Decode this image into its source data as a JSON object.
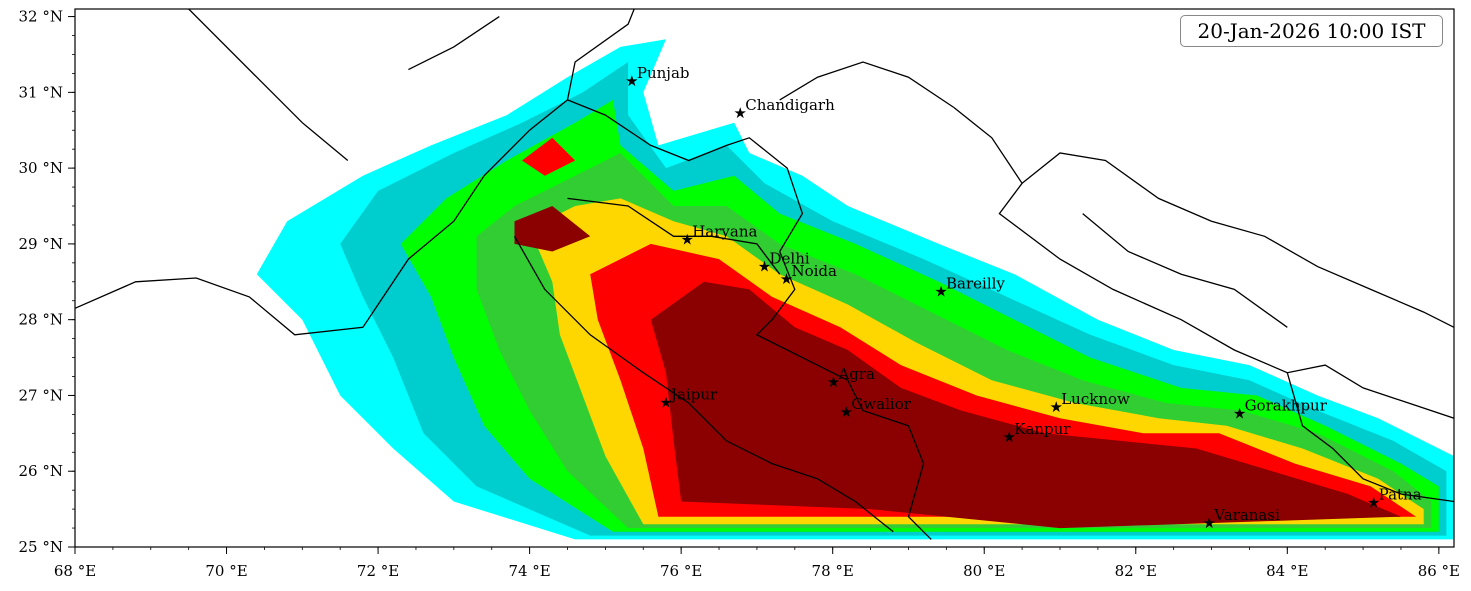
{
  "map": {
    "timestamp": "20-Jan-2026 10:00 IST",
    "colors": {
      "level1": "#00ffff",
      "level2": "#00cdcd",
      "level3": "#00ff00",
      "level4": "#32cd32",
      "level5": "#ffd700",
      "level6": "#ff0000",
      "level7": "#8b0000",
      "boundary": "#000000"
    },
    "lon_range": [
      68,
      86.2
    ],
    "lat_range": [
      25,
      32.1
    ],
    "x_ticks": [
      {
        "value": 68,
        "label": "68 °E"
      },
      {
        "value": 70,
        "label": "70 °E"
      },
      {
        "value": 72,
        "label": "72 °E"
      },
      {
        "value": 74,
        "label": "74 °E"
      },
      {
        "value": 76,
        "label": "76 °E"
      },
      {
        "value": 78,
        "label": "78 °E"
      },
      {
        "value": 80,
        "label": "80 °E"
      },
      {
        "value": 82,
        "label": "82 °E"
      },
      {
        "value": 84,
        "label": "84 °E"
      },
      {
        "value": 86,
        "label": "86 °E"
      }
    ],
    "y_ticks": [
      {
        "value": 25,
        "label": "25 °N"
      },
      {
        "value": 26,
        "label": "26 °N"
      },
      {
        "value": 27,
        "label": "27 °N"
      },
      {
        "value": 28,
        "label": "28 °N"
      },
      {
        "value": 29,
        "label": "29 °N"
      },
      {
        "value": 30,
        "label": "30 °N"
      },
      {
        "value": 31,
        "label": "31 °N"
      },
      {
        "value": 32,
        "label": "32 °N"
      }
    ],
    "cities": [
      {
        "name": "Punjab",
        "lon": 75.35,
        "lat": 31.15
      },
      {
        "name": "Chandigarh",
        "lon": 76.78,
        "lat": 30.73
      },
      {
        "name": "Haryana",
        "lon": 76.08,
        "lat": 29.06
      },
      {
        "name": "Delhi",
        "lon": 77.1,
        "lat": 28.7
      },
      {
        "name": "Noida",
        "lon": 77.39,
        "lat": 28.54
      },
      {
        "name": "Bareilly",
        "lon": 79.43,
        "lat": 28.37
      },
      {
        "name": "Jaipur",
        "lon": 75.8,
        "lat": 26.91
      },
      {
        "name": "Agra",
        "lon": 78.01,
        "lat": 27.18
      },
      {
        "name": "Gwalior",
        "lon": 78.18,
        "lat": 26.78
      },
      {
        "name": "Lucknow",
        "lon": 80.95,
        "lat": 26.85
      },
      {
        "name": "Kanpur",
        "lon": 80.33,
        "lat": 26.45
      },
      {
        "name": "Gorakhpur",
        "lon": 83.37,
        "lat": 26.76
      },
      {
        "name": "Varanasi",
        "lon": 82.97,
        "lat": 25.32
      },
      {
        "name": "Patna",
        "lon": 85.14,
        "lat": 25.59
      }
    ],
    "fog_layers": [
      {
        "level": "level1",
        "poly": [
          [
            74.6,
            25.1
          ],
          [
            73.0,
            25.6
          ],
          [
            72.2,
            26.3
          ],
          [
            71.5,
            27.0
          ],
          [
            71.0,
            28.0
          ],
          [
            70.4,
            28.6
          ],
          [
            70.8,
            29.3
          ],
          [
            71.8,
            29.9
          ],
          [
            72.7,
            30.3
          ],
          [
            73.7,
            30.7
          ],
          [
            74.5,
            31.2
          ],
          [
            75.2,
            31.6
          ],
          [
            75.8,
            31.7
          ],
          [
            75.5,
            31.0
          ],
          [
            75.7,
            30.3
          ],
          [
            76.7,
            30.6
          ],
          [
            76.9,
            30.2
          ],
          [
            77.6,
            29.9
          ],
          [
            78.2,
            29.5
          ],
          [
            79.4,
            29.0
          ],
          [
            80.4,
            28.6
          ],
          [
            81.5,
            28.0
          ],
          [
            82.5,
            27.6
          ],
          [
            83.5,
            27.4
          ],
          [
            84.4,
            27.0
          ],
          [
            85.2,
            26.7
          ],
          [
            86.2,
            26.2
          ],
          [
            86.2,
            25.1
          ]
        ]
      },
      {
        "level": "level2",
        "poly": [
          [
            74.8,
            25.15
          ],
          [
            73.3,
            25.8
          ],
          [
            72.6,
            26.5
          ],
          [
            72.2,
            27.5
          ],
          [
            71.8,
            28.3
          ],
          [
            71.5,
            29.0
          ],
          [
            72.0,
            29.7
          ],
          [
            73.0,
            30.2
          ],
          [
            73.9,
            30.6
          ],
          [
            74.7,
            31.0
          ],
          [
            75.3,
            31.4
          ],
          [
            75.3,
            30.7
          ],
          [
            75.8,
            30.0
          ],
          [
            76.6,
            30.3
          ],
          [
            77.1,
            29.8
          ],
          [
            78.0,
            29.3
          ],
          [
            79.2,
            28.8
          ],
          [
            80.3,
            28.3
          ],
          [
            81.4,
            27.8
          ],
          [
            82.5,
            27.4
          ],
          [
            83.5,
            27.2
          ],
          [
            84.4,
            26.8
          ],
          [
            85.4,
            26.4
          ],
          [
            86.1,
            26.0
          ],
          [
            86.1,
            25.15
          ]
        ]
      },
      {
        "level": "level3",
        "poly": [
          [
            75.1,
            25.2
          ],
          [
            74.0,
            25.9
          ],
          [
            73.4,
            26.6
          ],
          [
            73.0,
            27.5
          ],
          [
            72.7,
            28.3
          ],
          [
            72.3,
            29.0
          ],
          [
            72.9,
            29.6
          ],
          [
            73.7,
            30.1
          ],
          [
            74.6,
            30.6
          ],
          [
            75.1,
            30.9
          ],
          [
            75.2,
            30.3
          ],
          [
            75.9,
            29.7
          ],
          [
            76.7,
            29.9
          ],
          [
            77.3,
            29.4
          ],
          [
            78.3,
            29.0
          ],
          [
            79.4,
            28.5
          ],
          [
            80.4,
            28.0
          ],
          [
            81.4,
            27.5
          ],
          [
            82.6,
            27.1
          ],
          [
            83.6,
            27.0
          ],
          [
            84.5,
            26.6
          ],
          [
            85.5,
            26.1
          ],
          [
            86.0,
            25.8
          ],
          [
            86.0,
            25.2
          ]
        ]
      },
      {
        "level": "level4",
        "poly": [
          [
            75.3,
            25.25
          ],
          [
            74.5,
            26.0
          ],
          [
            74.0,
            26.8
          ],
          [
            73.6,
            27.6
          ],
          [
            73.3,
            28.4
          ],
          [
            73.3,
            29.1
          ],
          [
            73.8,
            29.5
          ],
          [
            74.6,
            29.9
          ],
          [
            75.2,
            30.2
          ],
          [
            75.9,
            29.5
          ],
          [
            76.6,
            29.5
          ],
          [
            77.3,
            29.0
          ],
          [
            78.3,
            28.6
          ],
          [
            79.3,
            28.1
          ],
          [
            80.3,
            27.6
          ],
          [
            81.3,
            27.2
          ],
          [
            82.4,
            26.9
          ],
          [
            83.4,
            26.8
          ],
          [
            84.4,
            26.5
          ],
          [
            85.4,
            26.0
          ],
          [
            85.9,
            25.6
          ],
          [
            85.9,
            25.25
          ]
        ]
      },
      {
        "level": "level5",
        "poly": [
          [
            75.5,
            25.3
          ],
          [
            75.0,
            26.2
          ],
          [
            74.7,
            27.0
          ],
          [
            74.4,
            27.8
          ],
          [
            74.3,
            28.5
          ],
          [
            74.0,
            29.2
          ],
          [
            74.6,
            29.5
          ],
          [
            75.2,
            29.6
          ],
          [
            75.9,
            29.3
          ],
          [
            76.6,
            29.1
          ],
          [
            77.3,
            28.6
          ],
          [
            78.2,
            28.2
          ],
          [
            79.1,
            27.7
          ],
          [
            80.1,
            27.2
          ],
          [
            81.2,
            26.9
          ],
          [
            82.3,
            26.7
          ],
          [
            83.2,
            26.6
          ],
          [
            84.2,
            26.3
          ],
          [
            85.2,
            25.9
          ],
          [
            85.8,
            25.5
          ],
          [
            85.8,
            25.3
          ]
        ]
      },
      {
        "level": "level6",
        "poly": [
          [
            75.7,
            25.4
          ],
          [
            75.5,
            26.3
          ],
          [
            75.2,
            27.2
          ],
          [
            74.9,
            28.0
          ],
          [
            74.8,
            28.6
          ],
          [
            75.6,
            29.0
          ],
          [
            76.5,
            28.8
          ],
          [
            77.2,
            28.3
          ],
          [
            78.1,
            27.9
          ],
          [
            78.9,
            27.4
          ],
          [
            79.9,
            27.0
          ],
          [
            81.0,
            26.7
          ],
          [
            82.1,
            26.5
          ],
          [
            83.1,
            26.5
          ],
          [
            84.1,
            26.1
          ],
          [
            85.1,
            25.8
          ],
          [
            85.7,
            25.4
          ]
        ]
      },
      {
        "level": "level7",
        "poly": [
          [
            76.0,
            25.6
          ],
          [
            75.9,
            26.4
          ],
          [
            75.8,
            27.3
          ],
          [
            75.6,
            28.0
          ],
          [
            76.3,
            28.5
          ],
          [
            76.9,
            28.4
          ],
          [
            77.5,
            27.9
          ],
          [
            78.2,
            27.6
          ],
          [
            78.9,
            27.1
          ],
          [
            79.7,
            26.8
          ],
          [
            80.8,
            26.5
          ],
          [
            81.8,
            26.4
          ],
          [
            82.8,
            26.3
          ],
          [
            83.8,
            26.0
          ],
          [
            84.8,
            25.7
          ],
          [
            85.5,
            25.4
          ],
          [
            81.0,
            25.25
          ],
          [
            78.5,
            25.5
          ]
        ]
      },
      {
        "level": "level7",
        "poly": [
          [
            73.8,
            29.3
          ],
          [
            74.3,
            29.5
          ],
          [
            74.8,
            29.1
          ],
          [
            74.3,
            28.9
          ],
          [
            73.8,
            29.0
          ]
        ]
      },
      {
        "level": "level6",
        "poly": [
          [
            73.9,
            30.1
          ],
          [
            74.3,
            30.4
          ],
          [
            74.6,
            30.1
          ],
          [
            74.2,
            29.9
          ]
        ]
      }
    ],
    "boundaries": [
      [
        [
          68,
          28.15
        ],
        [
          68.8,
          28.5
        ],
        [
          69.6,
          28.55
        ],
        [
          70.3,
          28.3
        ],
        [
          70.9,
          27.8
        ],
        [
          71.8,
          27.9
        ],
        [
          72.4,
          28.8
        ],
        [
          73.0,
          29.3
        ],
        [
          73.4,
          29.9
        ],
        [
          74.0,
          30.5
        ],
        [
          74.5,
          30.9
        ],
        [
          74.6,
          31.4
        ],
        [
          75.3,
          31.9
        ],
        [
          75.5,
          32.4
        ]
      ],
      [
        [
          74.5,
          30.9
        ],
        [
          75.0,
          30.7
        ],
        [
          75.6,
          30.3
        ],
        [
          76.1,
          30.1
        ],
        [
          76.6,
          30.3
        ],
        [
          76.9,
          30.4
        ],
        [
          77.4,
          30.0
        ],
        [
          77.6,
          29.4
        ],
        [
          77.3,
          28.9
        ],
        [
          77.5,
          28.4
        ],
        [
          77.2,
          28.0
        ],
        [
          77.0,
          27.8
        ],
        [
          77.6,
          27.5
        ],
        [
          78.2,
          27.2
        ],
        [
          78.4,
          26.8
        ],
        [
          79.0,
          26.6
        ],
        [
          79.2,
          26.1
        ],
        [
          79.0,
          25.4
        ],
        [
          79.3,
          25.1
        ]
      ],
      [
        [
          74.5,
          29.6
        ],
        [
          75.3,
          29.5
        ],
        [
          75.9,
          29.1
        ],
        [
          76.4,
          29.1
        ],
        [
          77.0,
          29.0
        ],
        [
          77.3,
          28.6
        ]
      ],
      [
        [
          73.8,
          29.1
        ],
        [
          74.2,
          28.4
        ],
        [
          74.8,
          27.8
        ],
        [
          75.5,
          27.3
        ],
        [
          76.1,
          26.9
        ],
        [
          76.6,
          26.4
        ],
        [
          77.2,
          26.1
        ],
        [
          77.8,
          25.9
        ],
        [
          78.3,
          25.6
        ],
        [
          78.8,
          25.2
        ]
      ],
      [
        [
          79.6,
          30.8
        ],
        [
          80.1,
          30.4
        ],
        [
          80.5,
          29.8
        ],
        [
          80.2,
          29.4
        ],
        [
          81.0,
          28.8
        ],
        [
          81.7,
          28.4
        ],
        [
          82.6,
          28.0
        ],
        [
          83.3,
          27.6
        ],
        [
          84.0,
          27.3
        ],
        [
          84.5,
          27.4
        ],
        [
          85.0,
          27.1
        ],
        [
          85.6,
          26.9
        ],
        [
          86.2,
          26.7
        ]
      ],
      [
        [
          77.3,
          30.9
        ],
        [
          77.8,
          31.2
        ],
        [
          78.4,
          31.4
        ],
        [
          79.0,
          31.2
        ],
        [
          79.6,
          30.8
        ]
      ],
      [
        [
          84.0,
          27.3
        ],
        [
          84.2,
          26.6
        ],
        [
          84.6,
          26.3
        ],
        [
          85.0,
          25.9
        ],
        [
          85.5,
          25.7
        ],
        [
          86.2,
          25.6
        ]
      ],
      [
        [
          80.5,
          29.8
        ],
        [
          81.0,
          30.2
        ],
        [
          81.6,
          30.1
        ],
        [
          82.3,
          29.6
        ],
        [
          83.0,
          29.3
        ],
        [
          83.7,
          29.1
        ],
        [
          84.4,
          28.7
        ],
        [
          85.1,
          28.4
        ],
        [
          85.8,
          28.1
        ],
        [
          86.2,
          27.9
        ]
      ],
      [
        [
          81.3,
          29.4
        ],
        [
          81.9,
          28.9
        ],
        [
          82.6,
          28.6
        ],
        [
          83.3,
          28.4
        ],
        [
          84.0,
          27.9
        ]
      ],
      [
        [
          69.5,
          32.1
        ],
        [
          70.4,
          31.2
        ],
        [
          71.0,
          30.6
        ],
        [
          71.6,
          30.1
        ]
      ],
      [
        [
          72.4,
          31.3
        ],
        [
          73.0,
          31.6
        ],
        [
          73.6,
          32.0
        ]
      ]
    ]
  }
}
